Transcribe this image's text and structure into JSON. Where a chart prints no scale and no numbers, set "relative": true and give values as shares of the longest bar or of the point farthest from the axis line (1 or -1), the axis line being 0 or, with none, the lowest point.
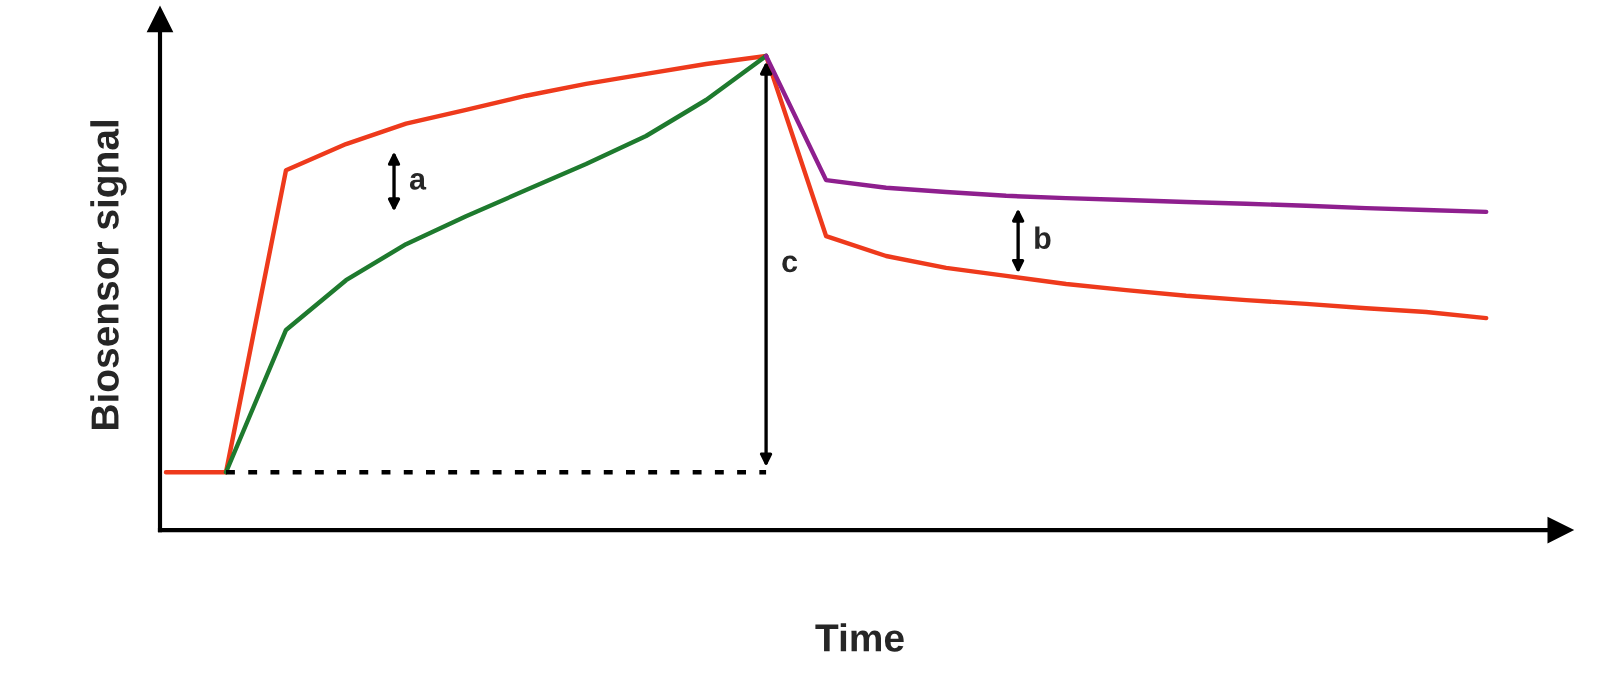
{
  "chart_data": {
    "type": "line",
    "relative": true,
    "xlabel": "Time",
    "ylabel": "Biosensor signal",
    "categories": [
      null,
      null,
      null,
      null,
      null,
      null,
      null,
      null,
      null,
      null,
      null,
      null,
      null,
      null,
      null,
      null,
      null,
      null,
      null,
      null,
      null,
      null,
      null
    ],
    "series": [
      {
        "color": "#ee3a1c",
        "values": [
          0.122,
          0.122,
          0.759,
          0.814,
          0.857,
          0.886,
          0.916,
          0.941,
          0.962,
          0.983,
          1,
          0.62,
          0.578,
          0.553,
          0.536,
          0.519,
          0.506,
          0.494,
          0.485,
          0.477,
          0.468,
          0.46,
          0.447
        ]
      },
      {
        "color": "#1e7a2e",
        "values": [
          null,
          0.122,
          0.422,
          0.527,
          0.603,
          0.662,
          0.717,
          0.772,
          0.831,
          0.907,
          1,
          null,
          null,
          null,
          null,
          null,
          null,
          null,
          null,
          null,
          null,
          null,
          null
        ]
      },
      {
        "color": "#8e1f8e",
        "values": [
          null,
          null,
          null,
          null,
          null,
          null,
          null,
          null,
          null,
          null,
          1,
          0.738,
          0.722,
          0.713,
          0.705,
          0.7,
          0.696,
          0.692,
          0.688,
          0.684,
          0.679,
          0.675,
          0.671
        ]
      },
      {
        "color": "#000000",
        "line_style": "dotted",
        "values": [
          null,
          0.122,
          0.122,
          0.122,
          0.122,
          0.122,
          0.122,
          0.122,
          0.122,
          0.122,
          0.122,
          null,
          null,
          null,
          null,
          null,
          null,
          null,
          null,
          null,
          null,
          null,
          null
        ]
      }
    ],
    "annotations": [
      "a",
      "b",
      "c"
    ]
  }
}
